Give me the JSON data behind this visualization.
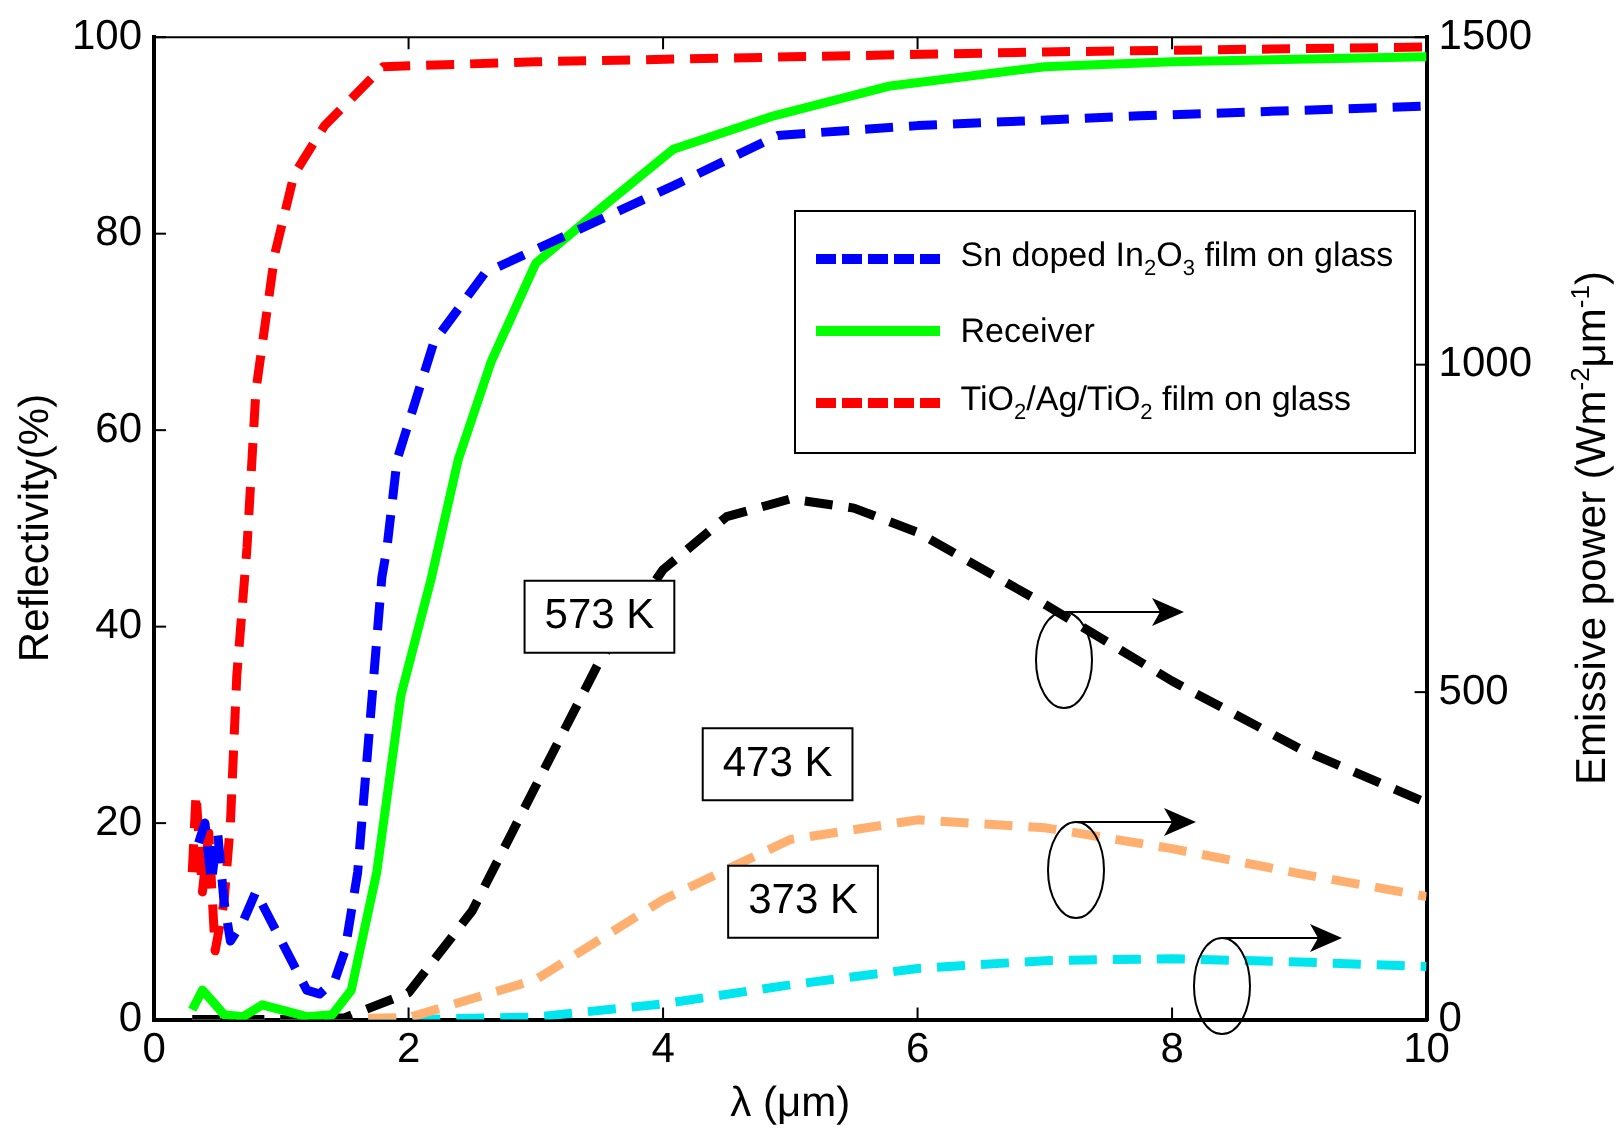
{
  "chart_data": {
    "type": "line",
    "xlabel": "λ (μm)",
    "ylabel": "Reflectivity(%)",
    "y2label": "Emissive power (Wm$^{-2}$μm$^{-1}$)",
    "xlim": [
      0,
      10
    ],
    "xticks": [
      0,
      2,
      4,
      6,
      8,
      10
    ],
    "ylim": [
      0,
      100
    ],
    "yticks": [
      0,
      20,
      40,
      60,
      80,
      100
    ],
    "y2lim": [
      0,
      1500
    ],
    "y2ticks": [
      0,
      500,
      1000,
      1500
    ],
    "grid": false,
    "legend": "top right",
    "line_style": "dashed",
    "marker": "none",
    "series": [
      {
        "name": "Sn doped In$_{2}$O$_{3}$ film on glass",
        "color": "#0000ff",
        "x": [
          0.35,
          0.4,
          0.45,
          0.5,
          0.55,
          0.6,
          0.7,
          0.8,
          1.0,
          1.2,
          1.3,
          1.42,
          1.5,
          1.6,
          1.67,
          1.79,
          1.83,
          1.91,
          2.2,
          2.6,
          3.1,
          3.6,
          4.1,
          4.9,
          6,
          7.75,
          10
        ],
        "values": [
          18,
          20,
          14,
          19,
          12,
          8,
          10,
          13,
          8,
          3,
          2.6,
          4,
          7,
          15,
          26,
          45,
          48,
          57,
          69,
          76,
          79,
          82,
          85,
          90,
          91,
          92,
          93
        ]
      },
      {
        "name": "Receiver",
        "color": "#00ff00",
        "line_style": "solid",
        "x": [
          0.3,
          0.38,
          0.45,
          0.55,
          0.7,
          0.85,
          1.0,
          1.2,
          1.4,
          1.55,
          1.75,
          1.94,
          2.18,
          2.39,
          2.65,
          3.0,
          3.55,
          4.08,
          4.87,
          5.77,
          7,
          8,
          10
        ],
        "values": [
          1,
          3,
          2,
          0.5,
          0.3,
          1.5,
          1,
          0.3,
          0.5,
          3,
          15,
          33,
          45,
          57,
          67,
          77,
          83,
          88.6,
          92,
          95,
          97,
          97.5,
          98
        ]
      },
      {
        "name": "TiO$_{2}$/Ag/TiO$_{2}$ film on glass",
        "color": "#ff0000",
        "x": [
          0.3,
          0.33,
          0.38,
          0.43,
          0.48,
          0.55,
          0.6,
          0.65,
          0.73,
          0.8,
          0.95,
          1.1,
          1.34,
          1.8,
          3,
          5,
          7,
          10
        ],
        "values": [
          15,
          23,
          13,
          19,
          7,
          12,
          20,
          35,
          48,
          64,
          78,
          86,
          91,
          97,
          97.5,
          98,
          98.5,
          99
        ]
      },
      {
        "color": "#000000",
        "axis": "y2",
        "x": [
          0.3,
          1,
          1.5,
          2,
          2.5,
          3,
          3.5,
          4,
          4.5,
          5,
          5.5,
          6,
          7,
          8,
          9,
          10
        ],
        "values": [
          0,
          0,
          3,
          41,
          166,
          357,
          547,
          687,
          768,
          795,
          781,
          744,
          634,
          517,
          414,
          331
        ]
      },
      {
        "color": "#ffb070",
        "axis": "y2",
        "x": [
          0.3,
          1,
          2,
          3,
          4,
          5,
          6,
          7,
          8,
          9,
          10
        ],
        "values": [
          0,
          0,
          3,
          61,
          183,
          275,
          305,
          293,
          261,
          223,
          188
        ]
      },
      {
        "color": "#00e5ee",
        "axis": "y2",
        "x": [
          0.3,
          2,
          3,
          4,
          5,
          6,
          7,
          8,
          9,
          10
        ],
        "values": [
          0,
          0,
          4,
          24,
          53,
          78,
          90,
          93,
          88,
          81
        ]
      }
    ],
    "annotations": [
      "573 K",
      "473 K",
      "373 K"
    ]
  }
}
